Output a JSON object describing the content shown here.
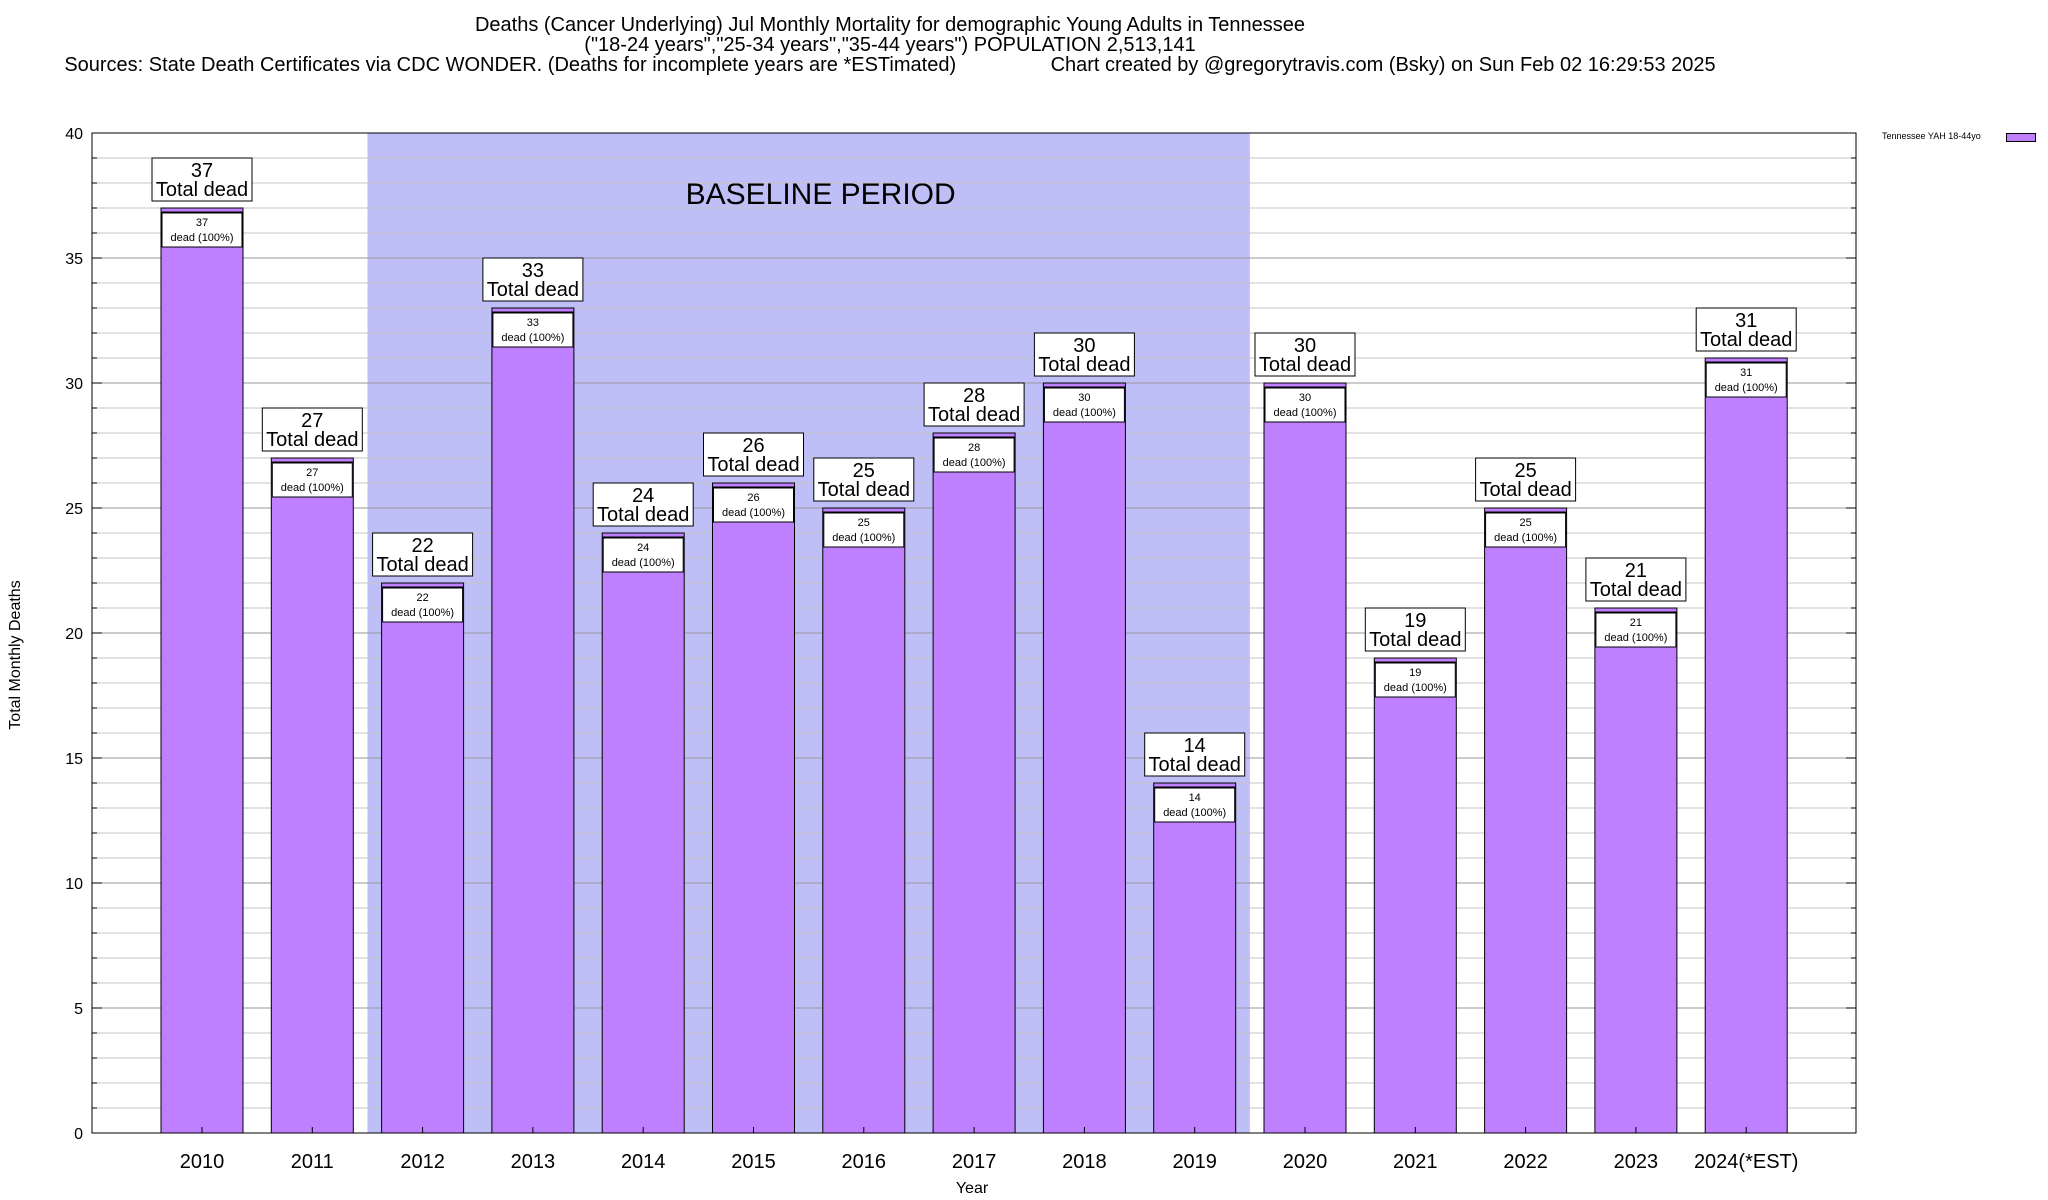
{
  "header": {
    "title": "Deaths (Cancer Underlying) Jul Monthly Mortality for demographic Young Adults in Tennessee",
    "subtitle": "(\"18-24 years\",\"25-34 years\",\"35-44 years\") POPULATION 2,513,141",
    "sources": "Sources: State Death Certificates via CDC WONDER. (Deaths for incomplete years are *ESTimated)",
    "credit": "Chart created by @gregorytravis.com (Bsky) on Sun Feb 02 16:29:53 2025"
  },
  "chart_data": {
    "type": "bar",
    "categories": [
      "2010",
      "2011",
      "2012",
      "2013",
      "2014",
      "2015",
      "2016",
      "2017",
      "2018",
      "2019",
      "2020",
      "2021",
      "2022",
      "2023",
      "2024(*EST)"
    ],
    "series": [
      {
        "name": "Tennessee YAH 18-44yo",
        "values": [
          37,
          27,
          22,
          33,
          24,
          26,
          25,
          28,
          30,
          14,
          30,
          19,
          25,
          21,
          31
        ]
      }
    ],
    "xlabel": "Year",
    "ylabel": "Total Monthly Deaths",
    "ylim": [
      0,
      40
    ],
    "yticks": [
      0,
      5,
      10,
      15,
      20,
      25,
      30,
      35,
      40
    ],
    "grid": true,
    "legend": "top-right",
    "bar_color": "#bf80ff",
    "baseline_color": "#bfbff7",
    "total_label_text": "Total dead",
    "inner_label_text": "dead (100%)",
    "annotations": [
      {
        "text": "BASELINE PERIOD",
        "from": "2012",
        "to": "2019"
      }
    ]
  }
}
